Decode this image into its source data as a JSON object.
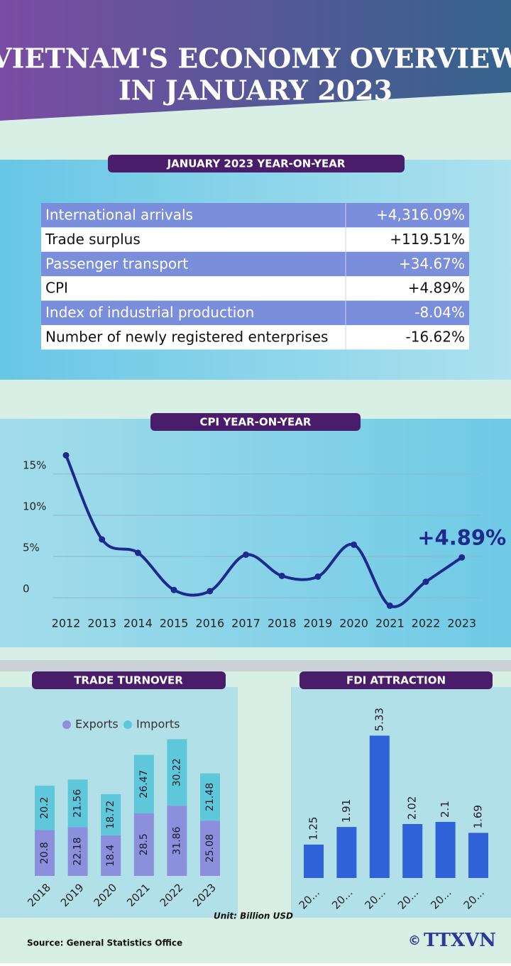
{
  "header": {
    "title_lines": [
      "VIETNAM'S ECONOMY OVERVIEW",
      "IN JANUARY 2023"
    ]
  },
  "table": {
    "title": "JANUARY 2023 YEAR-ON-YEAR",
    "rows": [
      [
        "International arrivals",
        "+4,316.09%"
      ],
      [
        "Trade surplus",
        "+119.51%"
      ],
      [
        "Passenger transport",
        "+34.67%"
      ],
      [
        "CPI",
        "+4.89%"
      ],
      [
        "Index of industrial production",
        "-8.04%"
      ],
      [
        "Number of newly registered enterprises",
        "-16.62%"
      ]
    ]
  },
  "chart_data": [
    {
      "type": "line",
      "title": "CPI YEAR-ON-YEAR",
      "categories": [
        "2012",
        "2013",
        "2014",
        "2015",
        "2016",
        "2017",
        "2018",
        "2019",
        "2020",
        "2021",
        "2022",
        "2023"
      ],
      "values": [
        17.27,
        7.07,
        5.45,
        0.94,
        0.8,
        5.22,
        2.65,
        2.56,
        6.43,
        -0.97,
        1.94,
        4.89
      ],
      "color": "#1b2a8c",
      "ylim": [
        -3,
        18
      ],
      "yticks": [
        0,
        {
          "value": 5,
          "label": "5%"
        },
        {
          "value": 10,
          "label": "10%"
        },
        {
          "value": 15,
          "label": "15%"
        }
      ],
      "grid": true,
      "annotation": "+4.89%"
    },
    {
      "type": "stacked_bar",
      "title": "TRADE TURNOVER",
      "categories": [
        "2018",
        "2019",
        "2020",
        "2021",
        "2022",
        "2023"
      ],
      "series": [
        {
          "name": "Exports",
          "color": "#8b8fdc",
          "values": [
            20.8,
            22.18,
            18.4,
            28.5,
            31.86,
            25.08
          ]
        },
        {
          "name": "Imports",
          "color": "#5ec7da",
          "values": [
            20.2,
            21.56,
            18.72,
            26.47,
            30.22,
            21.48
          ]
        }
      ],
      "ylim": [
        0,
        69
      ],
      "note": "Unit: Billion USD"
    },
    {
      "type": "bar",
      "title": "FDI ATTRACTION",
      "categories": [
        "20...",
        "20...",
        "20...",
        "20...",
        "20...",
        "20..."
      ],
      "values": [
        1.25,
        1.91,
        5.33,
        2.02,
        2.1,
        1.69
      ],
      "color": "#2f61d8",
      "ylim": [
        0,
        5.9
      ]
    }
  ],
  "footer": {
    "source": "Source: General Statistics Office",
    "copyright": "©",
    "logo": "TTXVN"
  }
}
